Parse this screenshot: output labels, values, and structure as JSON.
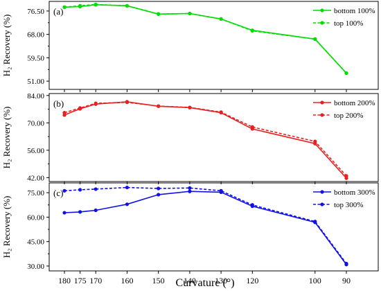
{
  "chart_data": {
    "type": "line",
    "xlabel": "Curvature (°)",
    "ylabel": "H₂ Recovery (%)",
    "x": [
      180,
      175,
      170,
      160,
      150,
      140,
      130,
      120,
      100,
      90
    ],
    "xtick_labels": [
      "180",
      "175",
      "170",
      "160",
      "150",
      "140",
      "130",
      "120",
      "100",
      "90"
    ],
    "x_reversed": true,
    "grid": false,
    "panels": [
      {
        "tag": "(a)",
        "color": "#00dd00",
        "ylim": [
          48,
          80
        ],
        "yticks": [
          "51.00",
          "59.50",
          "68.00",
          "76.50"
        ],
        "legend_position": "top-right",
        "series": [
          {
            "name": "bottom 100%",
            "style": "solid",
            "values": [
              77.9,
              78.1,
              78.8,
              78.4,
              75.4,
              75.6,
              73.6,
              69.5,
              66.3,
              53.9
            ]
          },
          {
            "name": "top 100%",
            "style": "dashed",
            "values": [
              77.9,
              78.4,
              78.9,
              78.4,
              75.4,
              75.6,
              73.6,
              69.3,
              66.3,
              53.9
            ]
          }
        ]
      },
      {
        "tag": "(b)",
        "color": "#e82020",
        "ylim": [
          40,
          85
        ],
        "yticks": [
          "42.00",
          "56.00",
          "70.00",
          "84.00"
        ],
        "legend_position": "top-right",
        "series": [
          {
            "name": "bottom 200%",
            "style": "solid",
            "values": [
              74.0,
              77.2,
              79.6,
              80.8,
              78.5,
              77.8,
              75.2,
              66.9,
              59.4,
              41.7
            ]
          },
          {
            "name": "top 200%",
            "style": "dashed",
            "values": [
              75.2,
              77.6,
              80.0,
              80.5,
              78.6,
              77.9,
              75.5,
              67.9,
              60.5,
              42.9
            ]
          }
        ]
      },
      {
        "tag": "(c)",
        "color": "#1010e8",
        "ylim": [
          27,
          81
        ],
        "yticks": [
          "30.00",
          "45.00",
          "60.00",
          "75.00"
        ],
        "legend_position": "top-right",
        "series": [
          {
            "name": "bottom 300%",
            "style": "solid",
            "values": [
              62.7,
              63.2,
              64.2,
              67.9,
              73.8,
              75.8,
              75.3,
              66.7,
              56.8,
              30.9
            ]
          },
          {
            "name": "top 300%",
            "style": "dashed",
            "values": [
              76.2,
              76.8,
              77.2,
              78.2,
              77.6,
              77.9,
              76.2,
              67.5,
              57.3,
              31.5
            ]
          }
        ]
      }
    ]
  }
}
